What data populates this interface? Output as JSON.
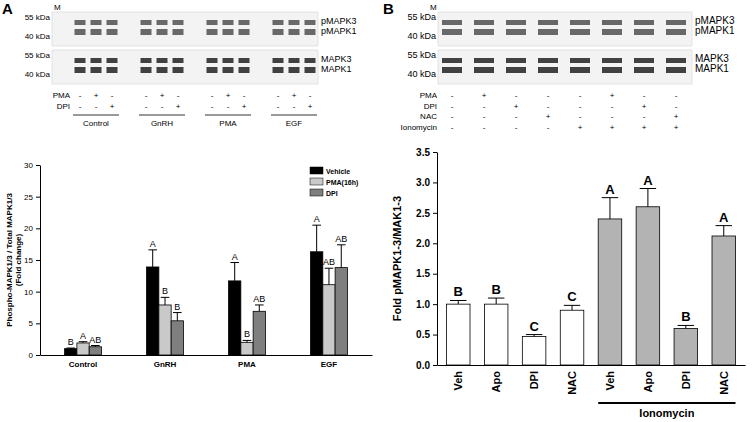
{
  "chart_data": [
    {
      "type": "bar",
      "title": "A",
      "blot": {
        "lane_label": "M",
        "panels": [
          {
            "size_labels": [
              "55 kDa",
              "40 kDa"
            ],
            "band_labels": [
              "pMAPK3",
              "pMAPK1"
            ]
          },
          {
            "size_labels": [
              "55 kDa",
              "40 kDa"
            ],
            "band_labels": [
              "MAPK3",
              "MAPK1"
            ]
          }
        ],
        "treatments": [
          {
            "name": "PMA",
            "signs": [
              "-",
              "+",
              "-",
              "-",
              "+",
              "-",
              "-",
              "+",
              "-",
              "-",
              "+",
              "-"
            ]
          },
          {
            "name": "DPI",
            "signs": [
              "-",
              "-",
              "+",
              "-",
              "-",
              "+",
              "-",
              "-",
              "+",
              "-",
              "-",
              "+"
            ]
          }
        ],
        "groups": [
          "Control",
          "GnRH",
          "PMA",
          "EGF"
        ]
      },
      "y_label": [
        "Phospho-MAPK1/3 / Total MAPK1/3",
        "(Fold change)"
      ],
      "categories": [
        "Control",
        "GnRH",
        "PMA",
        "EGF"
      ],
      "series": [
        {
          "name": "Vehicle",
          "color": "#000000",
          "values": [
            1.0,
            13.9,
            11.7,
            16.3
          ],
          "errors": [
            0.1,
            2.7,
            2.9,
            4.2
          ],
          "letters": [
            "B",
            "A",
            "A",
            "A"
          ]
        },
        {
          "name": "PMA(16h)",
          "color": "#c9c9c9",
          "values": [
            1.9,
            7.9,
            2.0,
            11.1
          ],
          "errors": [
            0.2,
            1.2,
            0.3,
            2.6
          ],
          "letters": [
            "A",
            "B",
            "B",
            "AB"
          ]
        },
        {
          "name": "DPI",
          "color": "#7f7f7f",
          "values": [
            1.3,
            5.4,
            6.9,
            13.8
          ],
          "errors": [
            0.2,
            1.3,
            1.0,
            3.6
          ],
          "letters": [
            "AB",
            "B",
            "AB",
            "AB"
          ]
        }
      ],
      "ylim": [
        0,
        30
      ],
      "yticks": [
        0,
        5,
        10,
        15,
        20,
        25,
        30
      ],
      "legend": "top-right"
    },
    {
      "type": "bar",
      "title": "B",
      "blot": {
        "lane_label": "M",
        "panels": [
          {
            "size_labels": [
              "55 kDa",
              "40 kDa"
            ],
            "band_labels": [
              "pMAPK3",
              "pMAPK1"
            ]
          },
          {
            "size_labels": [
              "55 kDa",
              "40 kDa"
            ],
            "band_labels": [
              "MAPK3",
              "MAPK1"
            ]
          }
        ],
        "treatments": [
          {
            "name": "PMA",
            "signs": [
              "-",
              "+",
              "-",
              "-",
              "-",
              "+",
              "-",
              "-"
            ]
          },
          {
            "name": "DPI",
            "signs": [
              "-",
              "-",
              "+",
              "-",
              "-",
              "-",
              "+",
              "-"
            ]
          },
          {
            "name": "NAC",
            "signs": [
              "-",
              "-",
              "-",
              "+",
              "-",
              "-",
              "-",
              "+"
            ]
          },
          {
            "name": "Ionomycin",
            "signs": [
              "-",
              "-",
              "-",
              "-",
              "+",
              "+",
              "+",
              "+"
            ]
          }
        ]
      },
      "y_label": "Fold pMAPK1-3/MAK1-3",
      "categories": [
        "Veh",
        "Apo",
        "DPI",
        "NAC",
        "Veh",
        "Apo",
        "DPI",
        "NAC"
      ],
      "values": [
        1.0,
        1.0,
        0.47,
        0.9,
        2.4,
        2.6,
        0.6,
        2.12
      ],
      "errors": [
        0.06,
        0.1,
        0.03,
        0.08,
        0.35,
        0.3,
        0.05,
        0.17
      ],
      "letters": [
        "B",
        "B",
        "C",
        "C",
        "A",
        "A",
        "B",
        "A"
      ],
      "colors": [
        "#ffffff",
        "#ffffff",
        "#ffffff",
        "#ffffff",
        "#b3b3b3",
        "#b3b3b3",
        "#b3b3b3",
        "#b3b3b3"
      ],
      "groups": [
        {
          "label": "Ionomycin",
          "from": 4,
          "to": 7
        }
      ],
      "ylim": [
        0,
        3.5
      ],
      "yticks": [
        {
          "value": 0,
          "label": "0.0"
        },
        0.5,
        {
          "value": 1,
          "label": "1.0"
        },
        1.5,
        {
          "value": 2,
          "label": "2.0"
        },
        2.5,
        {
          "value": 3,
          "label": "3.0"
        },
        3.5
      ]
    }
  ]
}
